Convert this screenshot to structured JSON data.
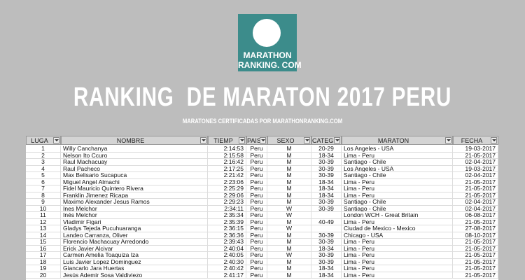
{
  "header": {
    "logo": [
      "MARATHON",
      "RANKING. COM"
    ],
    "title": "RANKING  DE MARATON 2017 PERU",
    "subtitle": "MARATONES CERTIFICADAS POR MARATHONRANKING.COM"
  },
  "table": {
    "columns": [
      "LUGA",
      "NOMBRE",
      "TIEMP",
      "PAIS",
      "SEXO",
      "CATEG",
      "MARATON",
      "FECHA"
    ],
    "rows": [
      [
        1,
        "Willy Canchanya",
        "2:14:53",
        "Peru",
        "M",
        "20-29",
        "Los Angeles - USA",
        "19-03-2017"
      ],
      [
        2,
        "Nelson Ito Ccuro",
        "2:15:58",
        "Peru",
        "M",
        "18-34",
        "Lima - Peru",
        "21-05-2017"
      ],
      [
        3,
        "Raul Machacuay",
        "2:16:42",
        "Peru",
        "M",
        "30-39",
        "Santiago - Chile",
        "02-04-2017"
      ],
      [
        4,
        "Raul Pacheco",
        "2:17:25",
        "Peru",
        "M",
        "30-39",
        "Los Angeles - USA",
        "19-03-2017"
      ],
      [
        5,
        "Max Belisario Sucapuca",
        "2:21:42",
        "Peru",
        "M",
        "30-39",
        "Santiago - Chile",
        "02-04-2017"
      ],
      [
        6,
        "Miguel Angel Almachi",
        "2:23:06",
        "Peru",
        "M",
        "18-34",
        "Lima - Peru",
        "21-05-2017"
      ],
      [
        7,
        "Fidel Mauricio Quintero Rivera",
        "2:25:29",
        "Peru",
        "M",
        "18-34",
        "Lima - Peru",
        "21-05-2017"
      ],
      [
        8,
        "Franklin Jimenez Ricapa",
        "2:29:06",
        "Peru",
        "M",
        "18-34",
        "Lima - Peru",
        "21-05-2017"
      ],
      [
        9,
        "Maximo Alexander Jesus Ramos",
        "2:29:23",
        "Peru",
        "M",
        "30-39",
        "Santiago - Chile",
        "02-04-2017"
      ],
      [
        10,
        "Ines Melchor",
        "2:34:11",
        "Peru",
        "W",
        "30-39",
        "Santiago - Chile",
        "02-04-2017"
      ],
      [
        11,
        "Inés Melchor",
        "2:35:34",
        "Peru",
        "W",
        null,
        "London WCH - Great Britain",
        "06-08-2017"
      ],
      [
        12,
        "Vladimir Figari",
        "2:35:39",
        "Peru",
        "M",
        "40-49",
        "Lima - Peru",
        "21-05-2017"
      ],
      [
        13,
        "Gladys Tejeda Pucuhuaranga",
        "2:36:15",
        "Peru",
        "W",
        null,
        "Ciudad de Mexico - Mexico",
        "27-08-2017"
      ],
      [
        14,
        "Landeo Carranza, Oliver",
        "2:36:36",
        "Peru",
        "M",
        "30-39",
        "Chicago - USA",
        "08-10-2017"
      ],
      [
        15,
        "Florencio Machacuay Arredondo",
        "2:39:43",
        "Peru",
        "M",
        "30-39",
        "Lima - Peru",
        "21-05-2017"
      ],
      [
        16,
        "Erick Javier Alcivar",
        "2:40:04",
        "Peru",
        "M",
        "18-34",
        "Lima - Peru",
        "21-05-2017"
      ],
      [
        17,
        "Carmen Amelia Toaquiza Iza",
        "2:40:05",
        "Peru",
        "W",
        "30-39",
        "Lima - Peru",
        "21-05-2017"
      ],
      [
        18,
        "Luis Javier Lopez Dominguez",
        "2:40:30",
        "Peru",
        "M",
        "30-39",
        "Lima - Peru",
        "21-05-2017"
      ],
      [
        19,
        "Giancarlo Jara Huertas",
        "2:40:42",
        "Peru",
        "M",
        "18-34",
        "Lima - Peru",
        "21-05-2017"
      ],
      [
        20,
        "Jesús Ademir Sosa Valdiviezo",
        "2:41:17",
        "Peru",
        "M",
        "18-34",
        "Lima - Peru",
        "21-05-2017"
      ]
    ]
  }
}
